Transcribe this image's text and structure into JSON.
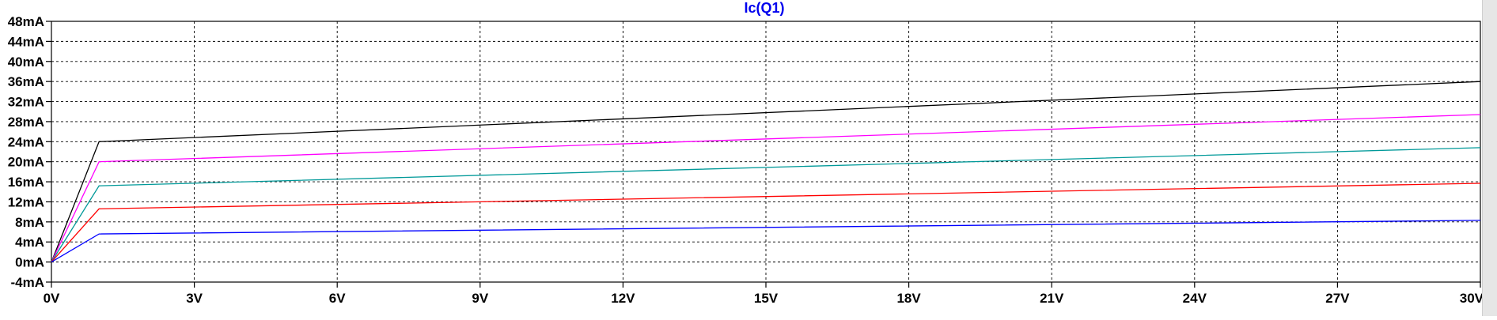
{
  "chart_data": {
    "type": "line",
    "title": "Ic(Q1)",
    "xlabel": "",
    "ylabel": "",
    "xlim": [
      0,
      30
    ],
    "ylim": [
      -4,
      48
    ],
    "x_ticks": [
      0,
      3,
      6,
      9,
      12,
      15,
      18,
      21,
      24,
      27,
      30
    ],
    "x_tick_labels": [
      "0V",
      "3V",
      "6V",
      "9V",
      "12V",
      "15V",
      "18V",
      "21V",
      "24V",
      "27V",
      "30V"
    ],
    "y_ticks": [
      -4,
      0,
      4,
      8,
      12,
      16,
      20,
      24,
      28,
      32,
      36,
      40,
      44,
      48
    ],
    "y_tick_labels": [
      "-4mA",
      "0mA",
      "4mA",
      "8mA",
      "12mA",
      "16mA",
      "20mA",
      "24mA",
      "28mA",
      "32mA",
      "36mA",
      "40mA",
      "44mA",
      "48mA"
    ],
    "grid": true,
    "grid_style": "dashed",
    "legend": "none",
    "colors": {
      "title": "#0000ee",
      "axis": "#000000",
      "grid": "#000000"
    },
    "series": [
      {
        "color": "#000000",
        "x": [
          0,
          1,
          30
        ],
        "y": [
          0,
          24,
          36
        ]
      },
      {
        "color": "#ff00ff",
        "x": [
          0,
          1,
          30
        ],
        "y": [
          0,
          20,
          29.4
        ]
      },
      {
        "color": "#009999",
        "x": [
          0,
          1,
          30
        ],
        "y": [
          0,
          15.2,
          22.8
        ]
      },
      {
        "color": "#ff0000",
        "x": [
          0,
          1,
          30
        ],
        "y": [
          0,
          10.6,
          15.7
        ]
      },
      {
        "color": "#0000ff",
        "x": [
          0,
          1,
          30
        ],
        "y": [
          0,
          5.6,
          8.3
        ]
      }
    ]
  }
}
